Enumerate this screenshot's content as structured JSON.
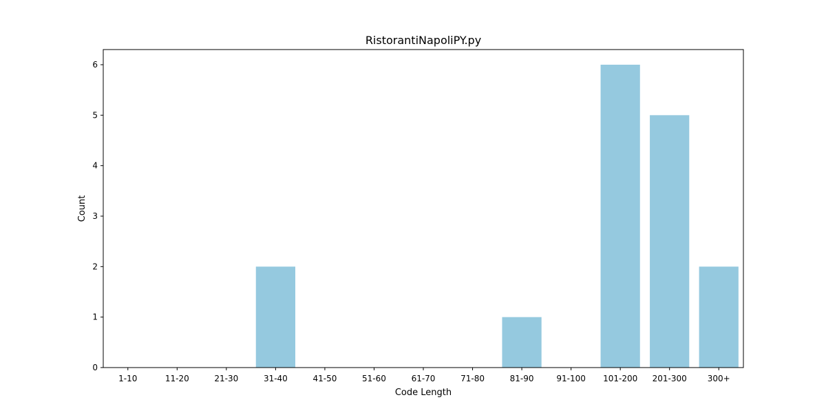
{
  "chart_data": {
    "type": "bar",
    "title": "RistorantiNapoliPY.py",
    "xlabel": "Code Length",
    "ylabel": "Count",
    "categories": [
      "1-10",
      "11-20",
      "21-30",
      "31-40",
      "41-50",
      "51-60",
      "61-70",
      "71-80",
      "81-90",
      "91-100",
      "101-200",
      "201-300",
      "300+"
    ],
    "values": [
      0,
      0,
      0,
      2,
      0,
      0,
      0,
      0,
      1,
      0,
      6,
      5,
      2
    ],
    "ylim": [
      0,
      6.3
    ],
    "yticks": [
      0,
      1,
      2,
      3,
      4,
      5,
      6
    ],
    "bar_color": "#95c9df",
    "grid": false,
    "legend": "none"
  }
}
